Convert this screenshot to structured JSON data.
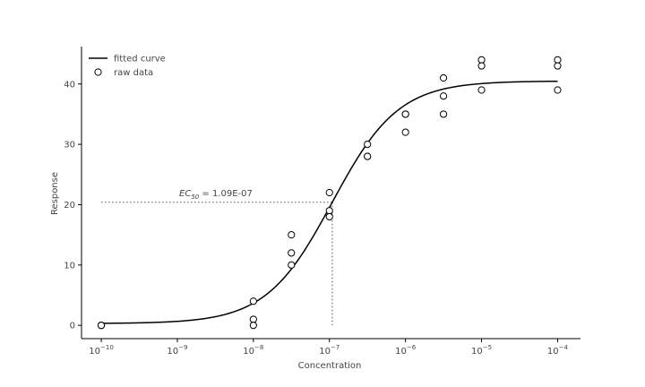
{
  "chart_data": {
    "type": "scatter",
    "title": "",
    "xlabel": "Concentration",
    "ylabel": "Response",
    "x_scale": "log",
    "xlim": [
      5.5e-11,
      0.0002
    ],
    "ylim": [
      -2.2,
      46.2
    ],
    "x_ticks": [
      1e-10,
      1e-09,
      1e-08,
      1e-07,
      1e-06,
      1e-05,
      0.0001
    ],
    "x_tick_exponents": [
      "-10",
      "-9",
      "-8",
      "-7",
      "-6",
      "-5",
      "-4"
    ],
    "y_ticks": [
      0,
      10,
      20,
      30,
      40
    ],
    "grid": false,
    "legend": {
      "position": "top-left",
      "entries": [
        {
          "label": "fitted curve",
          "marker": "line",
          "color": "#000000"
        },
        {
          "label": "raw data",
          "marker": "open-circle",
          "color": "#000000"
        }
      ]
    },
    "fit": {
      "model": "4PL",
      "bottom": 0.3,
      "top": 40.5,
      "ec50": 1.09e-07,
      "hill": 1.0
    },
    "ec50_marker": {
      "x": 1.09e-07,
      "y": 20.4,
      "label_prefix": "EC",
      "label_sub": "50",
      "label_value": " = 1.09E-07"
    },
    "series": [
      {
        "name": "raw data",
        "points": [
          [
            1e-10,
            0
          ],
          [
            1e-10,
            0
          ],
          [
            1e-10,
            0
          ],
          [
            1e-08,
            4
          ],
          [
            1e-08,
            1
          ],
          [
            1e-08,
            0
          ],
          [
            3.16e-08,
            15
          ],
          [
            3.16e-08,
            12
          ],
          [
            3.16e-08,
            10
          ],
          [
            1e-07,
            22
          ],
          [
            1e-07,
            19
          ],
          [
            1e-07,
            18
          ],
          [
            3.16e-07,
            30
          ],
          [
            3.16e-07,
            28
          ],
          [
            3.16e-07,
            28
          ],
          [
            1e-06,
            35
          ],
          [
            1e-06,
            35
          ],
          [
            1e-06,
            32
          ],
          [
            3.16e-06,
            41
          ],
          [
            3.16e-06,
            38
          ],
          [
            3.16e-06,
            35
          ],
          [
            1e-05,
            44
          ],
          [
            1e-05,
            43
          ],
          [
            1e-05,
            39
          ],
          [
            0.0001,
            44
          ],
          [
            0.0001,
            43
          ],
          [
            0.0001,
            39
          ]
        ]
      }
    ]
  }
}
